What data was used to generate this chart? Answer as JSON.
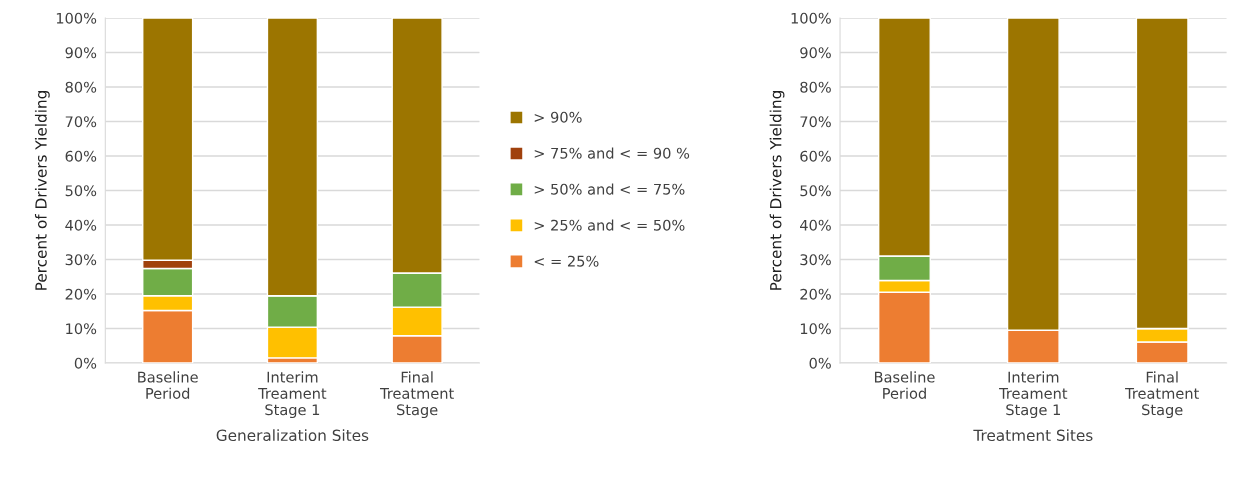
{
  "chart_data": [
    {
      "type": "bar",
      "stacked": true,
      "xlabel": "Generalization Sites",
      "ylabel": "Percent of Drivers Yielding",
      "categories": [
        "Baseline\nPeriod",
        "Interim\nTreament\nStage 1",
        "Final\nTreatment\nStage"
      ],
      "series": [
        {
          "name": "< = 25%",
          "color": "#ed7d31",
          "values": [
            15.2,
            1.5,
            7.9
          ]
        },
        {
          "name": "> 25% and < = 50%",
          "color": "#ffc000",
          "values": [
            4.3,
            8.9,
            8.3
          ]
        },
        {
          "name": "> 50% and < = 75%",
          "color": "#70ad47",
          "values": [
            7.9,
            9.1,
            9.9
          ]
        },
        {
          "name": "> 75% and < = 90 %",
          "color": "#a0410d",
          "values": [
            2.4,
            0,
            0
          ]
        },
        {
          "name": "> 90%",
          "color": "#9c7500",
          "values": [
            70.2,
            80.5,
            73.9
          ]
        }
      ],
      "ylim": [
        0,
        100
      ],
      "yticks": [
        {
          "value": 0,
          "label": "0%"
        },
        {
          "value": 10,
          "label": "10%"
        },
        {
          "value": 20,
          "label": "20%"
        },
        {
          "value": 30,
          "label": "30%"
        },
        {
          "value": 40,
          "label": "40%"
        },
        {
          "value": 50,
          "label": "50%"
        },
        {
          "value": 60,
          "label": "60%"
        },
        {
          "value": 70,
          "label": "70%"
        },
        {
          "value": 80,
          "label": "80%"
        },
        {
          "value": 90,
          "label": "90%"
        },
        {
          "value": 100,
          "label": "100%"
        }
      ],
      "grid": "y",
      "legend": "right"
    },
    {
      "type": "bar",
      "stacked": true,
      "xlabel": "Treatment Sites",
      "ylabel": "Percent of Drivers Yielding",
      "categories": [
        "Baseline\nPeriod",
        "Interim\nTreament\nStage 1",
        "Final\nTreatment\nStage"
      ],
      "series": [
        {
          "color": "#ed7d31",
          "values": [
            20.5,
            9.5,
            6.1
          ]
        },
        {
          "color": "#ffc000",
          "values": [
            3.4,
            0,
            3.9
          ]
        },
        {
          "color": "#70ad47",
          "values": [
            7.1,
            0,
            0
          ]
        },
        {
          "color": "#a0410d",
          "values": [
            0,
            0,
            0
          ]
        },
        {
          "color": "#9c7500",
          "values": [
            69.0,
            90.5,
            90.0
          ]
        }
      ],
      "ylim": [
        0,
        100
      ],
      "yticks": [
        {
          "value": 0,
          "label": "0%"
        },
        {
          "value": 10,
          "label": "10%"
        },
        {
          "value": 20,
          "label": "20%"
        },
        {
          "value": 30,
          "label": "30%"
        },
        {
          "value": 40,
          "label": "40%"
        },
        {
          "value": 50,
          "label": "50%"
        },
        {
          "value": 60,
          "label": "60%"
        },
        {
          "value": 70,
          "label": "70%"
        },
        {
          "value": 80,
          "label": "80%"
        },
        {
          "value": 90,
          "label": "90%"
        },
        {
          "value": 100,
          "label": "100%"
        }
      ],
      "grid": "y"
    }
  ]
}
